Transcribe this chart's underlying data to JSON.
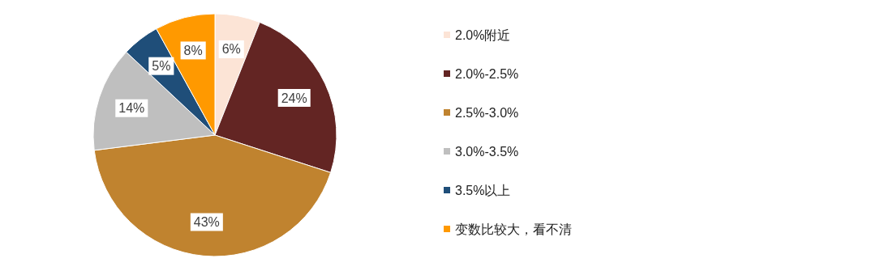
{
  "chart_data": {
    "type": "pie",
    "categories": [
      "2.0%附近",
      "2.0%-2.5%",
      "2.5%-3.0%",
      "3.0%-3.5%",
      "3.5%以上",
      "变数比较大，看不清"
    ],
    "values": [
      6,
      24,
      43,
      14,
      5,
      8
    ],
    "value_labels": [
      "6%",
      "24%",
      "43%",
      "14%",
      "5%",
      "8%"
    ],
    "colors": [
      "#fce4d6",
      "#632523",
      "#c0832f",
      "#bfbfbf",
      "#1f4e79",
      "#ff9900"
    ],
    "legend": "right"
  }
}
